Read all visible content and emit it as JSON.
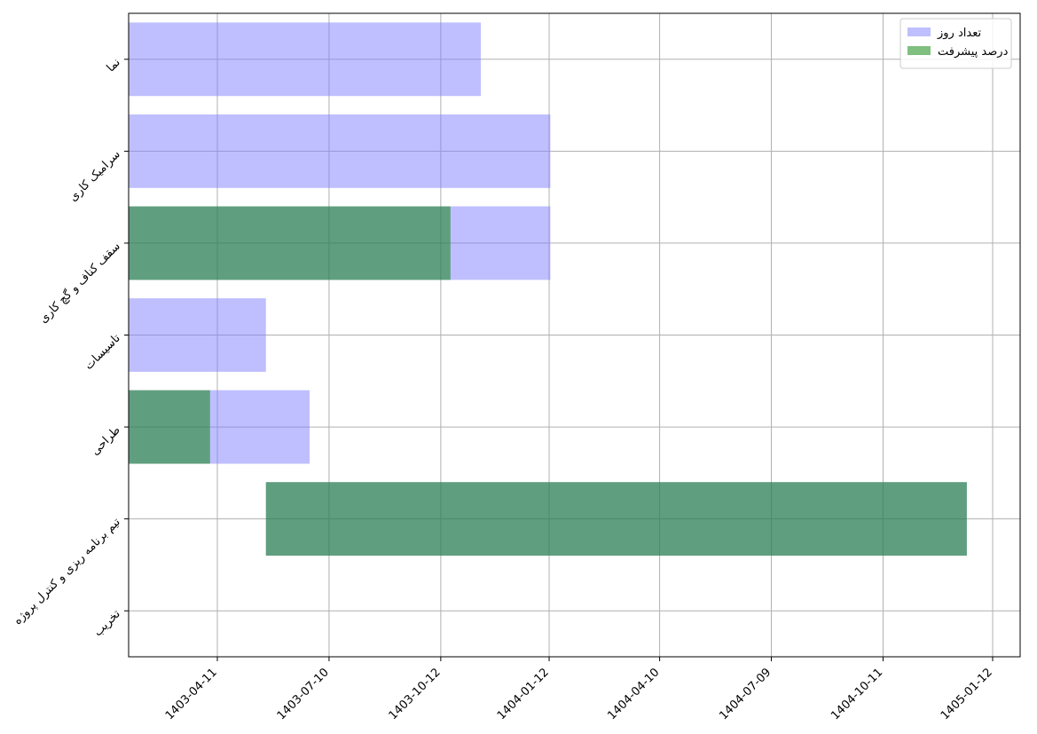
{
  "chart_data": {
    "type": "bar",
    "orientation": "horizontal",
    "categories": [
      "نما",
      "سرامیک کاری",
      "سقف کناف و گچ کاری",
      "تاسیسات",
      "طراحی",
      "تیم برنامه ریزی و کنترل پروژه",
      "تخریب"
    ],
    "x_ticks": [
      "1403-04-11",
      "1403-07-10",
      "1403-10-12",
      "1404-01-12",
      "1404-04-10",
      "1404-07-09",
      "1404-10-11",
      "1405-01-12"
    ],
    "series": [
      {
        "name": "تعداد روز",
        "color": "#8080ff",
        "start": [
          "1403-01-31",
          "1403-01-31",
          "1403-01-31",
          "1403-01-31",
          "1403-01-31",
          "1403-05-20",
          null
        ],
        "end": [
          "1403-11-15",
          "1404-01-13",
          "1404-01-13",
          "1403-05-20",
          "1403-06-25",
          "1404-12-20",
          null
        ]
      },
      {
        "name": "درصد پیشرفت",
        "color": "#008000",
        "start": [
          null,
          null,
          "1403-01-31",
          null,
          "1403-01-31",
          "1403-05-20",
          null
        ],
        "end": [
          null,
          null,
          "1403-10-20",
          null,
          "1403-04-05",
          "1404-12-20",
          null
        ]
      }
    ],
    "grid": true,
    "legend": "top-right",
    "title": "",
    "xlabel": "",
    "ylabel": ""
  }
}
